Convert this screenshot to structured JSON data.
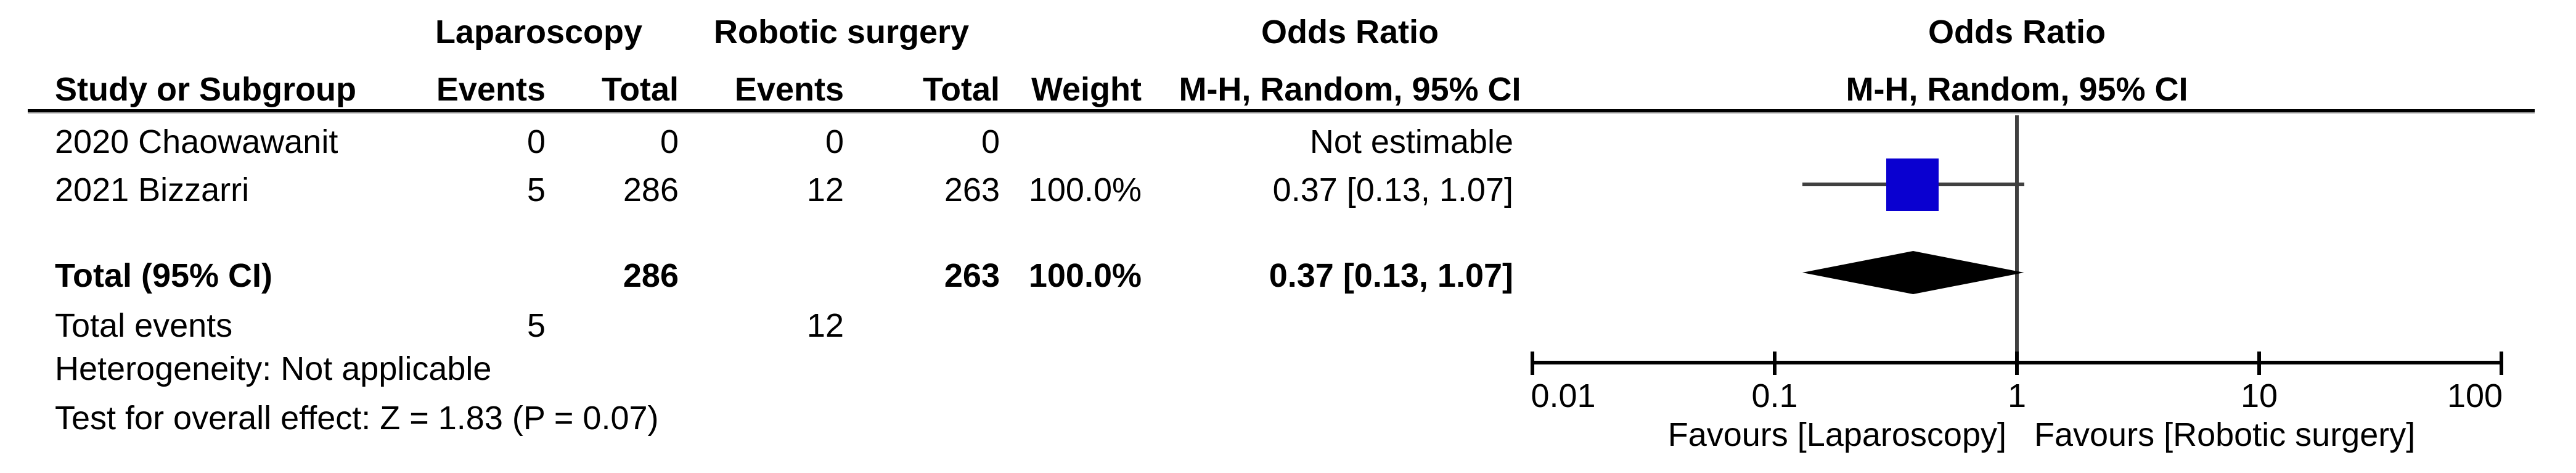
{
  "table": {
    "group_headers": {
      "laparoscopy": "Laparoscopy",
      "robotic": "Robotic surgery",
      "or_text_line1": "Odds Ratio",
      "or_text_line2": "M-H, Random, 95% CI",
      "or_plot_line1": "Odds Ratio",
      "or_plot_line2": "M-H, Random, 95% CI"
    },
    "col_headers": {
      "study": "Study or Subgroup",
      "events1": "Events",
      "total1": "Total",
      "events2": "Events",
      "total2": "Total",
      "weight": "Weight"
    },
    "rows": [
      {
        "study": "2020 Chaowawanit",
        "e1": "0",
        "t1": "0",
        "e2": "0",
        "t2": "0",
        "weight": "",
        "or_text": "Not estimable"
      },
      {
        "study": "2021 Bizzarri",
        "e1": "5",
        "t1": "286",
        "e2": "12",
        "t2": "263",
        "weight": "100.0%",
        "or_text": "0.37 [0.13, 1.07]"
      }
    ],
    "total_row": {
      "label": "Total (95% CI)",
      "t1": "286",
      "t2": "263",
      "weight": "100.0%",
      "or_text": "0.37 [0.13, 1.07]"
    },
    "total_events": {
      "label": "Total events",
      "e1": "5",
      "e2": "12"
    },
    "heterogeneity": "Heterogeneity: Not applicable",
    "overall_effect": "Test for overall effect: Z = 1.83 (P = 0.07)"
  },
  "chart_data": {
    "type": "forest",
    "scale": "log10",
    "xlim": [
      0.01,
      100
    ],
    "axis_ticks": [
      0.01,
      0.1,
      1,
      10,
      100
    ],
    "tick_labels": [
      "0.01",
      "0.1",
      "1",
      "10",
      "100"
    ],
    "studies": [
      {
        "name": "2021 Bizzarri",
        "or": 0.37,
        "ci_low": 0.13,
        "ci_high": 1.07,
        "weight_pct": 100.0
      }
    ],
    "total": {
      "or": 0.37,
      "ci_low": 0.13,
      "ci_high": 1.07
    },
    "favours_left": "Favours [Laparoscopy]",
    "favours_right": "Favours [Robotic surgery]"
  },
  "colors": {
    "marker_blue": "#0a00d0",
    "diamond_black": "#000000",
    "line_gray": "#404040"
  }
}
